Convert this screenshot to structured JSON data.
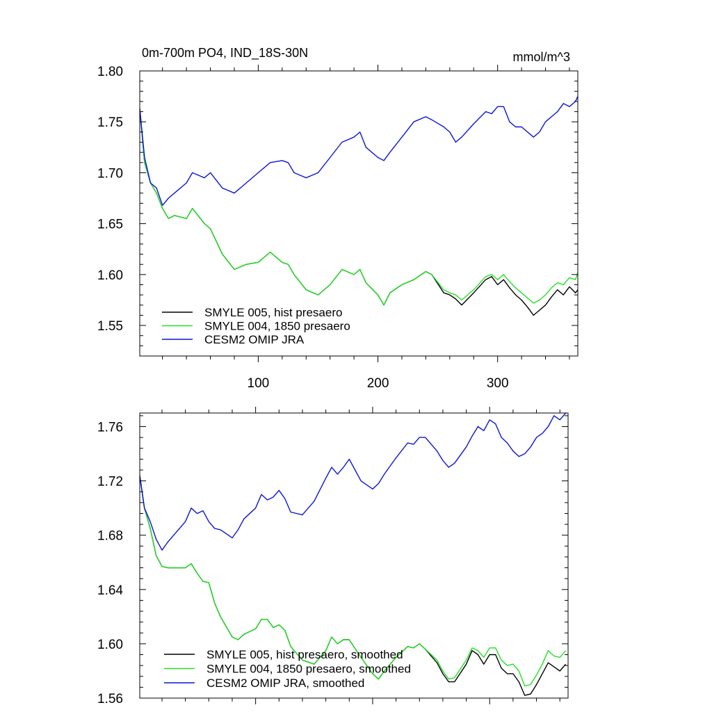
{
  "colors": {
    "black": "#000000",
    "green": "#22e022",
    "blue": "#0a14d6"
  },
  "chart_data": [
    {
      "type": "line",
      "title": "0m-700m PO4, IND_18S-30N",
      "units": "mmol/m^3",
      "xlim": [
        1,
        367
      ],
      "ylim": [
        1.52,
        1.8
      ],
      "x_ticks": [
        100,
        200,
        300
      ],
      "x_tick_labels": [
        "100",
        "200",
        "300"
      ],
      "y_ticks": [
        1.55,
        1.6,
        1.65,
        1.7,
        1.75,
        1.8
      ],
      "y_tick_labels": [
        "1.55",
        "1.60",
        "1.65",
        "1.70",
        "1.75",
        "1.80"
      ],
      "legend": "bottom-left",
      "series": [
        {
          "name": "SMYLE 005, hist presaero",
          "color": "#000000",
          "x": [
            1,
            5,
            10,
            15,
            20,
            25,
            30,
            40,
            45,
            55,
            60,
            70,
            80,
            90,
            100,
            110,
            120,
            125,
            130,
            140,
            150,
            160,
            170,
            180,
            185,
            190,
            200,
            205,
            210,
            220,
            230,
            240,
            245,
            255,
            260,
            265,
            270,
            280,
            290,
            295,
            300,
            305,
            310,
            315,
            320,
            325,
            330,
            335,
            340,
            345,
            350,
            355,
            360,
            365,
            367
          ],
          "y": [
            1.763,
            1.71,
            1.69,
            1.68,
            1.665,
            1.655,
            1.658,
            1.655,
            1.665,
            1.65,
            1.645,
            1.62,
            1.605,
            1.61,
            1.612,
            1.622,
            1.612,
            1.61,
            1.6,
            1.585,
            1.58,
            1.59,
            1.605,
            1.6,
            1.605,
            1.592,
            1.58,
            1.57,
            1.582,
            1.59,
            1.595,
            1.603,
            1.6,
            1.582,
            1.58,
            1.576,
            1.57,
            1.582,
            1.595,
            1.598,
            1.59,
            1.595,
            1.587,
            1.58,
            1.575,
            1.568,
            1.56,
            1.565,
            1.57,
            1.578,
            1.585,
            1.58,
            1.588,
            1.582,
            1.585
          ]
        },
        {
          "name": "SMYLE 004, 1850 presaero",
          "color": "#22e022",
          "x": [
            1,
            5,
            10,
            15,
            20,
            25,
            30,
            40,
            45,
            55,
            60,
            70,
            80,
            90,
            100,
            110,
            120,
            125,
            130,
            140,
            150,
            160,
            170,
            180,
            185,
            190,
            200,
            205,
            210,
            220,
            230,
            240,
            245,
            255,
            260,
            265,
            270,
            280,
            290,
            295,
            300,
            305,
            310,
            315,
            320,
            325,
            330,
            335,
            340,
            345,
            350,
            355,
            360,
            365,
            367
          ],
          "y": [
            1.763,
            1.71,
            1.69,
            1.68,
            1.665,
            1.655,
            1.658,
            1.655,
            1.665,
            1.65,
            1.645,
            1.62,
            1.605,
            1.61,
            1.612,
            1.622,
            1.612,
            1.61,
            1.6,
            1.585,
            1.58,
            1.59,
            1.605,
            1.6,
            1.605,
            1.592,
            1.58,
            1.57,
            1.582,
            1.59,
            1.595,
            1.603,
            1.6,
            1.585,
            1.582,
            1.58,
            1.575,
            1.585,
            1.598,
            1.6,
            1.595,
            1.6,
            1.593,
            1.587,
            1.582,
            1.577,
            1.572,
            1.575,
            1.58,
            1.587,
            1.592,
            1.59,
            1.597,
            1.595,
            1.602
          ]
        },
        {
          "name": "CESM2 OMIP JRA",
          "color": "#0a14d6",
          "x": [
            1,
            5,
            10,
            15,
            20,
            25,
            30,
            40,
            45,
            55,
            60,
            70,
            80,
            90,
            100,
            110,
            120,
            125,
            130,
            140,
            150,
            160,
            170,
            180,
            185,
            190,
            200,
            205,
            210,
            220,
            230,
            240,
            245,
            255,
            260,
            265,
            270,
            280,
            290,
            295,
            300,
            305,
            310,
            315,
            320,
            325,
            330,
            335,
            340,
            345,
            350,
            355,
            360,
            365,
            367
          ],
          "y": [
            1.763,
            1.715,
            1.69,
            1.685,
            1.668,
            1.675,
            1.68,
            1.69,
            1.7,
            1.695,
            1.7,
            1.685,
            1.68,
            1.69,
            1.7,
            1.71,
            1.712,
            1.71,
            1.7,
            1.695,
            1.7,
            1.715,
            1.73,
            1.735,
            1.74,
            1.725,
            1.715,
            1.712,
            1.72,
            1.735,
            1.75,
            1.755,
            1.752,
            1.745,
            1.74,
            1.73,
            1.735,
            1.748,
            1.76,
            1.758,
            1.765,
            1.765,
            1.75,
            1.745,
            1.745,
            1.74,
            1.735,
            1.74,
            1.75,
            1.755,
            1.76,
            1.768,
            1.765,
            1.77,
            1.775
          ]
        }
      ]
    },
    {
      "type": "line",
      "title": "",
      "xlim": [
        1,
        367
      ],
      "ylim": [
        1.56,
        1.77
      ],
      "x_ticks": [
        100,
        200,
        300
      ],
      "x_tick_labels": [],
      "y_ticks": [
        1.56,
        1.6,
        1.64,
        1.68,
        1.72,
        1.76
      ],
      "y_tick_labels": [
        "1.56",
        "1.60",
        "1.64",
        "1.68",
        "1.72",
        "1.76"
      ],
      "legend": "bottom-left",
      "series": [
        {
          "name": "SMYLE 005, hist presaero, smoothed",
          "color": "#000000",
          "x": [
            1,
            5,
            10,
            15,
            20,
            25,
            30,
            40,
            45,
            50,
            55,
            60,
            65,
            70,
            80,
            85,
            90,
            100,
            105,
            110,
            115,
            120,
            125,
            130,
            140,
            150,
            160,
            165,
            170,
            175,
            180,
            190,
            200,
            205,
            210,
            220,
            230,
            235,
            240,
            245,
            255,
            260,
            265,
            270,
            280,
            285,
            290,
            295,
            300,
            305,
            310,
            315,
            320,
            325,
            330,
            335,
            340,
            345,
            350,
            355,
            360,
            365
          ],
          "y": [
            1.724,
            1.7,
            1.685,
            1.665,
            1.657,
            1.656,
            1.656,
            1.656,
            1.659,
            1.652,
            1.646,
            1.645,
            1.63,
            1.62,
            1.605,
            1.603,
            1.607,
            1.611,
            1.618,
            1.618,
            1.612,
            1.614,
            1.61,
            1.598,
            1.588,
            1.585,
            1.595,
            1.605,
            1.6,
            1.603,
            1.603,
            1.59,
            1.578,
            1.574,
            1.58,
            1.59,
            1.598,
            1.597,
            1.6,
            1.596,
            1.586,
            1.578,
            1.572,
            1.572,
            1.585,
            1.595,
            1.592,
            1.585,
            1.592,
            1.592,
            1.582,
            1.578,
            1.578,
            1.572,
            1.562,
            1.563,
            1.57,
            1.578,
            1.586,
            1.583,
            1.58,
            1.585
          ]
        },
        {
          "name": "SMYLE 004, 1850 presaero, smoothed",
          "color": "#22e022",
          "x": [
            1,
            5,
            10,
            15,
            20,
            25,
            30,
            40,
            45,
            50,
            55,
            60,
            65,
            70,
            80,
            85,
            90,
            100,
            105,
            110,
            115,
            120,
            125,
            130,
            140,
            150,
            160,
            165,
            170,
            175,
            180,
            190,
            200,
            205,
            210,
            220,
            230,
            235,
            240,
            245,
            255,
            260,
            265,
            270,
            280,
            285,
            290,
            295,
            300,
            305,
            310,
            315,
            320,
            325,
            330,
            335,
            340,
            345,
            350,
            355,
            360,
            365
          ],
          "y": [
            1.724,
            1.7,
            1.685,
            1.665,
            1.657,
            1.656,
            1.656,
            1.656,
            1.659,
            1.652,
            1.646,
            1.645,
            1.63,
            1.62,
            1.605,
            1.603,
            1.607,
            1.611,
            1.618,
            1.618,
            1.612,
            1.614,
            1.61,
            1.598,
            1.588,
            1.585,
            1.595,
            1.605,
            1.6,
            1.603,
            1.603,
            1.59,
            1.578,
            1.574,
            1.58,
            1.59,
            1.598,
            1.597,
            1.6,
            1.596,
            1.588,
            1.58,
            1.574,
            1.575,
            1.588,
            1.597,
            1.595,
            1.59,
            1.597,
            1.597,
            1.588,
            1.584,
            1.585,
            1.58,
            1.569,
            1.57,
            1.577,
            1.585,
            1.595,
            1.591,
            1.59,
            1.595
          ]
        },
        {
          "name": "CESM2 OMIP JRA, smoothed",
          "color": "#0a14d6",
          "x": [
            1,
            5,
            10,
            15,
            20,
            25,
            30,
            40,
            45,
            50,
            55,
            60,
            65,
            70,
            80,
            85,
            90,
            100,
            105,
            110,
            115,
            120,
            125,
            130,
            140,
            150,
            160,
            165,
            170,
            175,
            180,
            190,
            200,
            205,
            210,
            220,
            230,
            235,
            240,
            245,
            255,
            260,
            265,
            270,
            280,
            285,
            290,
            295,
            300,
            305,
            310,
            315,
            320,
            325,
            330,
            335,
            340,
            345,
            350,
            355,
            360,
            365
          ],
          "y": [
            1.724,
            1.7,
            1.69,
            1.677,
            1.669,
            1.675,
            1.68,
            1.69,
            1.7,
            1.696,
            1.698,
            1.69,
            1.685,
            1.684,
            1.678,
            1.684,
            1.692,
            1.7,
            1.71,
            1.706,
            1.708,
            1.713,
            1.707,
            1.697,
            1.695,
            1.705,
            1.722,
            1.73,
            1.725,
            1.73,
            1.736,
            1.72,
            1.714,
            1.718,
            1.725,
            1.737,
            1.748,
            1.747,
            1.752,
            1.752,
            1.742,
            1.735,
            1.73,
            1.733,
            1.745,
            1.753,
            1.76,
            1.757,
            1.765,
            1.762,
            1.752,
            1.748,
            1.742,
            1.738,
            1.74,
            1.745,
            1.752,
            1.755,
            1.76,
            1.768,
            1.765,
            1.77
          ]
        }
      ]
    }
  ]
}
